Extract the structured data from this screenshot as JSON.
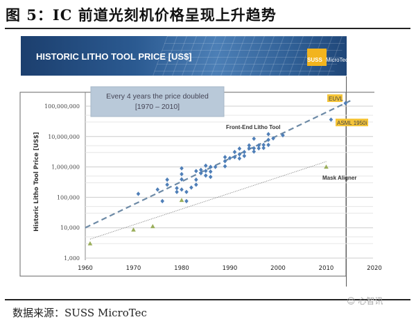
{
  "figure_title": "图 5：IC 前道光刻机价格呈现上升趋势",
  "banner": {
    "title": "HISTORIC LITHO TOOL PRICE [US$]",
    "logo_suss": "SUSS",
    "logo_micro": "MicroTec"
  },
  "footer": {
    "source": "数据来源：SUSS MicroTec",
    "watermark": "心智讯"
  },
  "chart_data": {
    "type": "scatter",
    "title": "HISTORIC LITHO TOOL PRICE [US$]",
    "xlabel": "",
    "ylabel": "Historic Litho Tool Price [US$]",
    "xlim": [
      1960,
      2020
    ],
    "ylim": [
      1000,
      100000000
    ],
    "yscale": "log",
    "x_ticks": [
      "1960",
      "1970",
      "1980",
      "1990",
      "2000",
      "2010",
      "2020"
    ],
    "y_ticks": [
      "1,000",
      "10,000",
      "100,000",
      "1,000,000",
      "10,000,000",
      "100,000,000"
    ],
    "grid": true,
    "annotation_box": {
      "line1": "Every 4 years the price doubled",
      "line2": "[1970 – 2010]"
    },
    "labels": {
      "euvl": "EUVL",
      "asml": "ASML 1950i",
      "front_end": "Front-End Litho Tool",
      "mask_aligner": "Mask Aligner"
    },
    "colors": {
      "front_end": "#4f7fb8",
      "mask_aligner": "#9aae5a",
      "trend_front": "#6d8aa6",
      "trend_mask": "#777777",
      "highlight": "#f5c53a"
    },
    "series": [
      {
        "name": "Front-End Litho Tool",
        "marker": "diamond",
        "points": [
          [
            1971,
            130000
          ],
          [
            1975,
            180000
          ],
          [
            1976,
            75000
          ],
          [
            1977,
            380000
          ],
          [
            1977,
            260000
          ],
          [
            1979,
            200000
          ],
          [
            1979,
            150000
          ],
          [
            1980,
            900000
          ],
          [
            1980,
            580000
          ],
          [
            1980,
            390000
          ],
          [
            1980,
            180000
          ],
          [
            1981,
            150000
          ],
          [
            1981,
            75000
          ],
          [
            1982,
            210000
          ],
          [
            1983,
            380000
          ],
          [
            1983,
            260000
          ],
          [
            1983,
            730000
          ],
          [
            1984,
            800000
          ],
          [
            1984,
            620000
          ],
          [
            1985,
            1100000
          ],
          [
            1985,
            740000
          ],
          [
            1985,
            520000
          ],
          [
            1986,
            1000000
          ],
          [
            1986,
            700000
          ],
          [
            1986,
            470000
          ],
          [
            1987,
            1000000
          ],
          [
            1989,
            2100000
          ],
          [
            1989,
            1550000
          ],
          [
            1989,
            1050000
          ],
          [
            1990,
            1950000
          ],
          [
            1991,
            3100000
          ],
          [
            1991,
            2100000
          ],
          [
            1992,
            4000000
          ],
          [
            1992,
            2600000
          ],
          [
            1992,
            1900000
          ],
          [
            1993,
            3100000
          ],
          [
            1993,
            2300000
          ],
          [
            1994,
            5100000
          ],
          [
            1994,
            4100000
          ],
          [
            1995,
            8500000
          ],
          [
            1995,
            4100000
          ],
          [
            1995,
            3200000
          ],
          [
            1996,
            5100000
          ],
          [
            1996,
            4100000
          ],
          [
            1997,
            5300000
          ],
          [
            1997,
            4200000
          ],
          [
            1998,
            12000000
          ],
          [
            1998,
            7800000
          ],
          [
            1998,
            5300000
          ],
          [
            1999,
            8700000
          ],
          [
            2001,
            11000000
          ],
          [
            2011,
            36000000
          ],
          [
            2014,
            125000000
          ]
        ]
      },
      {
        "name": "Mask Aligner",
        "marker": "triangle",
        "points": [
          [
            1961,
            3000
          ],
          [
            1970,
            8500
          ],
          [
            1974,
            11000
          ],
          [
            1980,
            80000
          ],
          [
            2010,
            1000000
          ]
        ]
      }
    ],
    "trendlines": [
      {
        "name": "Front-End trend",
        "style": "dashed",
        "from": [
          1960,
          10000
        ],
        "to": [
          2015,
          150000000
        ]
      },
      {
        "name": "Mask Aligner trend",
        "style": "dotted",
        "from": [
          1961,
          4200
        ],
        "to": [
          2010,
          1500000
        ]
      }
    ]
  }
}
